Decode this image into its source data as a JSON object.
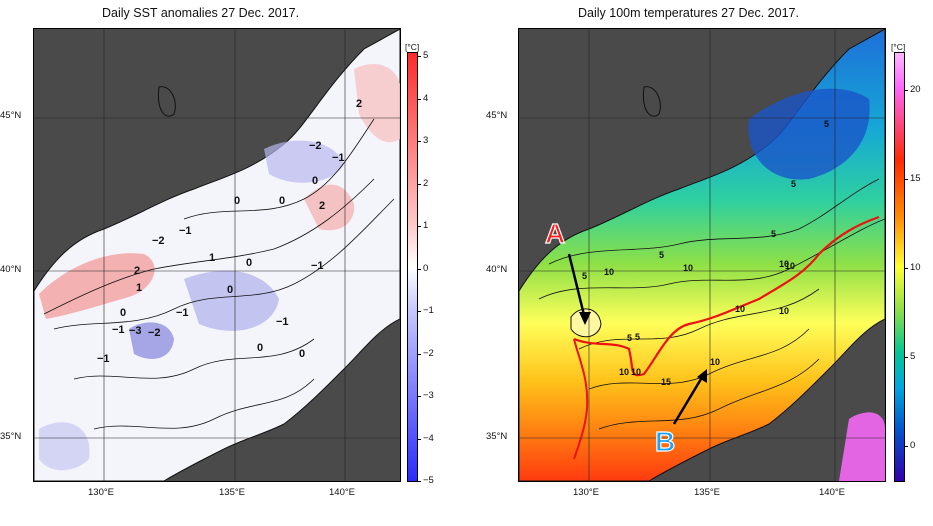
{
  "left_panel": {
    "title": "Daily SST anomalies 27 Dec. 2017.",
    "y_labels": [
      "45°N",
      "40°N",
      "35°N"
    ],
    "x_labels": [
      "130°E",
      "135°E",
      "140°E"
    ],
    "colorbar": {
      "unit": "[°C]",
      "ticks": [
        "5",
        "4",
        "3",
        "2",
        "1",
        "0",
        "−1",
        "−2",
        "−3",
        "−4",
        "−5"
      ],
      "colors": [
        "#ff2a2a",
        "#ffffff",
        "#2a2aff"
      ]
    },
    "contour_labels": [
      "2",
      "−2",
      "−1",
      "0",
      "2",
      "−2",
      "−1",
      "0",
      "0",
      "1",
      "0",
      "2",
      "1",
      "0",
      "−1",
      "−3",
      "−2",
      "−1",
      "0",
      "−1",
      "−1",
      "0",
      "0",
      "−1"
    ]
  },
  "right_panel": {
    "title": "Daily 100m temperatures 27 Dec. 2017.",
    "y_labels": [
      "45°N",
      "40°N",
      "35°N"
    ],
    "x_labels": [
      "130°E",
      "135°E",
      "140°E"
    ],
    "colorbar": {
      "unit": "[°C]",
      "ticks": [
        "20",
        "15",
        "10",
        "5",
        "0"
      ],
      "colors": [
        "#ff66ff",
        "#ff2a00",
        "#ffb000",
        "#ffff33",
        "#33cc33",
        "#00b8d8",
        "#0055cc",
        "#3300aa"
      ]
    },
    "contour_labels": [
      "5",
      "5",
      "5",
      "5",
      "10",
      "10",
      "5",
      "10",
      "5",
      "10",
      "10",
      "10",
      "10",
      "5",
      "10",
      "10",
      "15"
    ],
    "annotations": [
      {
        "text": "A",
        "color": "#ff1a1a"
      },
      {
        "text": "B",
        "color": "#1aa0ff"
      }
    ],
    "front_line_color": "#ee1111"
  },
  "land_color": "#4a4a4a",
  "coast_color": "#111111"
}
